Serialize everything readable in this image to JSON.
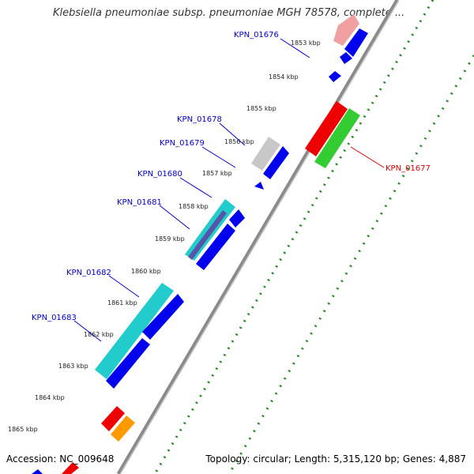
{
  "title": "Klebsiella pneumoniae subsp. pneumoniae MGH 78578, complete ...",
  "footer": {
    "accession": "Accession: NC_009648",
    "summary": "Topology: circular; Length: 5,315,120 bp; Genes: 4,887"
  },
  "colors": {
    "backbone": "#8a8a8a",
    "tick_dots": "#1a8a1a",
    "label_blue": "#0000cc",
    "label_red": "#dd0000",
    "gene_blue": "#0000ee",
    "gene_red": "#ee0000",
    "gene_green": "#33cc33",
    "gene_cyan": "#22cccc",
    "gene_grey": "#c8c8c8",
    "gene_pink": "#f0a0a0",
    "gene_orange": "#ff9900"
  },
  "kbp_ticks": [
    "1853 kbp",
    "1854 kbp",
    "1855 kbp",
    "1856 kbp",
    "1857 kbp",
    "1858 kbp",
    "1859 kbp",
    "1860 kbp",
    "1861 kbp",
    "1862 kbp",
    "1863 kbp",
    "1864 kbp",
    "1865 kbp"
  ],
  "gene_labels": [
    {
      "text": "KPN_01676",
      "color": "label_blue"
    },
    {
      "text": "KPN_01677",
      "color": "label_red"
    },
    {
      "text": "KPN_01678",
      "color": "label_blue"
    },
    {
      "text": "KPN_01679",
      "color": "label_blue"
    },
    {
      "text": "KPN_01680",
      "color": "label_blue"
    },
    {
      "text": "KPN_01681",
      "color": "label_blue"
    },
    {
      "text": "KPN_01682",
      "color": "label_blue"
    },
    {
      "text": "KPN_01683",
      "color": "label_blue"
    }
  ]
}
